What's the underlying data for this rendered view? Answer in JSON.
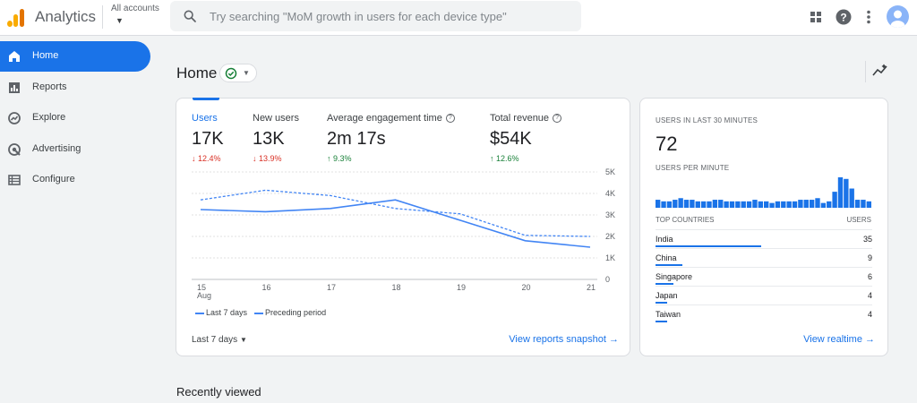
{
  "header": {
    "app_title": "Analytics",
    "account_label": "All accounts",
    "search_placeholder": "Try searching \"MoM growth in users for each device type\""
  },
  "sidebar": {
    "items": [
      {
        "label": "Home",
        "icon": "home-icon",
        "active": true
      },
      {
        "label": "Reports",
        "icon": "bar-chart-icon",
        "active": false
      },
      {
        "label": "Explore",
        "icon": "explore-icon",
        "active": false
      },
      {
        "label": "Advertising",
        "icon": "advertising-icon",
        "active": false
      },
      {
        "label": "Configure",
        "icon": "list-icon",
        "active": false
      }
    ]
  },
  "page": {
    "title": "Home"
  },
  "overview": {
    "metrics": [
      {
        "label": "Users",
        "value": "17K",
        "change": "12.4%",
        "direction": "down",
        "selected": true
      },
      {
        "label": "New users",
        "value": "13K",
        "change": "13.9%",
        "direction": "down",
        "selected": false
      },
      {
        "label": "Average engagement time",
        "value": "2m 17s",
        "change": "9.3%",
        "direction": "up",
        "selected": false
      },
      {
        "label": "Total revenue",
        "value": "$54K",
        "change": "12.6%",
        "direction": "up",
        "selected": false
      }
    ],
    "range_label": "Last 7 days",
    "link_label": "View reports snapshot"
  },
  "chart_data": {
    "type": "line",
    "x": [
      "15",
      "16",
      "17",
      "18",
      "19",
      "20",
      "21"
    ],
    "x_sublabel": "Aug",
    "y_ticks": [
      "5K",
      "4K",
      "3K",
      "2K",
      "1K",
      "0"
    ],
    "ylim": [
      0,
      5000
    ],
    "grid": true,
    "series": [
      {
        "name": "Last 7 days",
        "style": "solid",
        "values": [
          3250,
          3150,
          3300,
          3700,
          2750,
          1800,
          1500
        ]
      },
      {
        "name": "Preceding period",
        "style": "dashed",
        "values": [
          3700,
          4150,
          3900,
          3300,
          3050,
          2050,
          2000
        ]
      }
    ],
    "color": "#4285f4"
  },
  "realtime": {
    "users_label": "USERS IN LAST 30 MINUTES",
    "users_value": "72",
    "per_minute_label": "USERS PER MINUTE",
    "per_minute": [
      5,
      4,
      4,
      5,
      6,
      5,
      5,
      4,
      4,
      4,
      5,
      5,
      4,
      4,
      4,
      4,
      4,
      5,
      4,
      4,
      3,
      4,
      4,
      4,
      4,
      5,
      5,
      5,
      6,
      3,
      4,
      10,
      19,
      18,
      12,
      5,
      5,
      4
    ],
    "countries_header": "TOP COUNTRIES",
    "users_header": "USERS",
    "countries": [
      {
        "name": "India",
        "value": "35"
      },
      {
        "name": "China",
        "value": "9"
      },
      {
        "name": "Singapore",
        "value": "6"
      },
      {
        "name": "Japan",
        "value": "4"
      },
      {
        "name": "Taiwan",
        "value": "4"
      }
    ],
    "link_label": "View realtime"
  },
  "recent": {
    "title": "Recently viewed"
  },
  "colors": {
    "accent": "#1a73e8",
    "down": "#d93025",
    "up": "#188038"
  }
}
